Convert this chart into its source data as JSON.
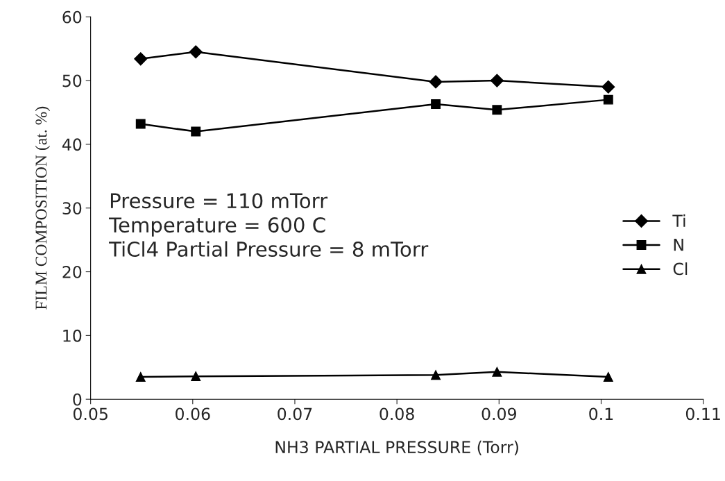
{
  "chart_data": {
    "type": "line",
    "xlabel": "NH3 PARTIAL PRESSURE (Torr)",
    "ylabel": "FILM COMPOSITION (at. %)",
    "xlim": [
      0.05,
      0.11
    ],
    "xticks": [
      0.05,
      0.06,
      0.07,
      0.08,
      0.09,
      0.1,
      0.11
    ],
    "ylim": [
      0,
      60
    ],
    "yticks": [
      0,
      10,
      20,
      30,
      40,
      50,
      60
    ],
    "grid": false,
    "legend": "right",
    "x": [
      0.0549,
      0.0603,
      0.0838,
      0.0898,
      0.1007
    ],
    "series": [
      {
        "name": "Ti",
        "color": "#000000",
        "marker": "diamond",
        "values": [
          53.4,
          54.5,
          49.8,
          50.0,
          49.0
        ]
      },
      {
        "name": "N",
        "color": "#000000",
        "marker": "square",
        "values": [
          43.2,
          42.0,
          46.3,
          45.4,
          47.0
        ]
      },
      {
        "name": "Cl",
        "color": "#000000",
        "marker": "triangle",
        "values": [
          3.5,
          3.6,
          3.8,
          4.3,
          3.5
        ]
      }
    ],
    "annotations": [
      "Pressure = 110 mTorr\nTemperature = 600 C\nTiCl4 Partial Pressure = 8 mTorr"
    ]
  }
}
